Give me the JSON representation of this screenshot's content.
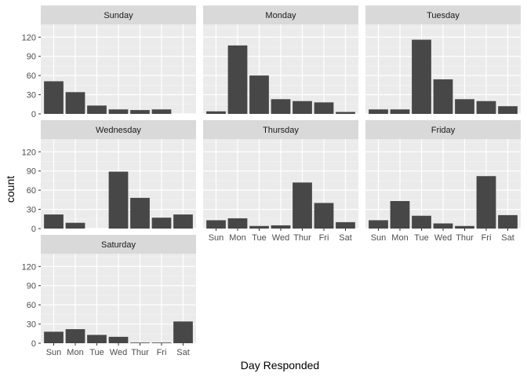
{
  "chart_data": {
    "type": "bar",
    "style": "ggplot2 facet_wrap, grey panel background with white grid",
    "xlabel": "Day Responded",
    "ylabel": "count",
    "categories": [
      "Sun",
      "Mon",
      "Tue",
      "Wed",
      "Thur",
      "Fri",
      "Sat"
    ],
    "ylim": [
      0,
      140
    ],
    "yticks": [
      0,
      30,
      60,
      90,
      120
    ],
    "bar_color": "#474747",
    "panel_bg": "#EBEBEB",
    "strip_bg": "#D9D9D9",
    "grid": true,
    "facets": [
      {
        "name": "Sunday",
        "values": [
          51,
          34,
          13,
          7,
          6,
          7,
          0
        ]
      },
      {
        "name": "Monday",
        "values": [
          4,
          107,
          60,
          23,
          20,
          18,
          3
        ]
      },
      {
        "name": "Tuesday",
        "values": [
          7,
          7,
          116,
          54,
          23,
          20,
          12
        ]
      },
      {
        "name": "Wednesday",
        "values": [
          22,
          9,
          0,
          89,
          48,
          17,
          22
        ]
      },
      {
        "name": "Thursday",
        "values": [
          13,
          16,
          4,
          5,
          72,
          40,
          10
        ]
      },
      {
        "name": "Friday",
        "values": [
          13,
          43,
          20,
          8,
          4,
          82,
          21
        ]
      },
      {
        "name": "Saturday",
        "values": [
          18,
          22,
          13,
          10,
          1,
          1,
          34
        ]
      }
    ]
  }
}
